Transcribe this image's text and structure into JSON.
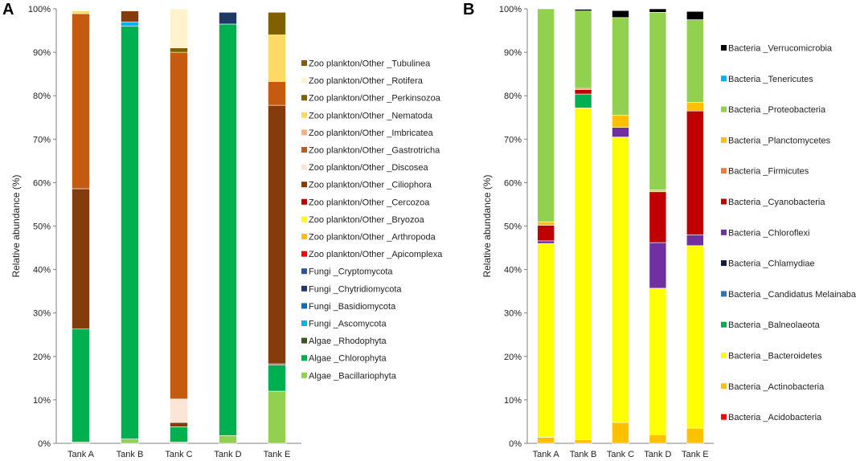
{
  "chart_data": [
    {
      "type": "bar",
      "stacked": true,
      "panel_label": "A",
      "title": "",
      "xlabel": "",
      "ylabel": "Relative abundance (%)",
      "ylim": [
        0,
        100
      ],
      "yticks": [
        "0%",
        "10%",
        "20%",
        "30%",
        "40%",
        "50%",
        "60%",
        "70%",
        "80%",
        "90%",
        "100%"
      ],
      "categories": [
        "Tank A",
        "Tank B",
        "Tank C",
        "Tank D",
        "Tank E"
      ],
      "series": [
        {
          "name": "Algae _Bacillariophyta",
          "color": "#92d050",
          "values": [
            0.3,
            1.0,
            0.3,
            1.8,
            12.0
          ]
        },
        {
          "name": "Algae _Chlorophyta",
          "color": "#00b050",
          "values": [
            26.0,
            95.0,
            3.5,
            94.7,
            6.0
          ]
        },
        {
          "name": "Algae _Rhodophyta",
          "color": "#375623",
          "values": [
            0.0,
            0.0,
            0.0,
            0.0,
            0.3
          ]
        },
        {
          "name": "Fungi _Ascomycota",
          "color": "#00b0f0",
          "values": [
            0.0,
            1.0,
            0.0,
            0.0,
            0.0
          ]
        },
        {
          "name": "Fungi _Basidiomycota",
          "color": "#0070c0",
          "values": [
            0.0,
            0.0,
            0.0,
            0.0,
            0.0
          ]
        },
        {
          "name": "Fungi _Chytridiomycota",
          "color": "#1f3864",
          "values": [
            0.0,
            0.0,
            0.0,
            2.7,
            0.0
          ]
        },
        {
          "name": "Fungi _Cryptomycota",
          "color": "#2f5597",
          "values": [
            0.0,
            0.0,
            0.0,
            0.0,
            0.0
          ]
        },
        {
          "name": "Zoo plankton/Other _Apicomplexa",
          "color": "#ff0000",
          "values": [
            0.0,
            0.0,
            0.0,
            0.0,
            0.0
          ]
        },
        {
          "name": "Zoo plankton/Other _Arthropoda",
          "color": "#ffc000",
          "values": [
            0.0,
            0.0,
            0.0,
            0.0,
            0.0
          ]
        },
        {
          "name": "Zoo plankton/Other _Bryozoa",
          "color": "#ffff00",
          "values": [
            0.0,
            0.0,
            0.0,
            0.0,
            0.0
          ]
        },
        {
          "name": "Zoo plankton/Other _Cercozoa",
          "color": "#c00000",
          "values": [
            0.0,
            0.0,
            0.0,
            0.0,
            0.0
          ]
        },
        {
          "name": "Zoo plankton/Other _Ciliophora",
          "color": "#843c0c",
          "values": [
            32.3,
            2.5,
            1.0,
            0.0,
            59.5
          ]
        },
        {
          "name": "Zoo plankton/Other _Discosea",
          "color": "#fbe5d6",
          "values": [
            0.0,
            0.0,
            5.4,
            0.0,
            0.0
          ]
        },
        {
          "name": "Zoo plankton/Other _Gastrotricha",
          "color": "#c55a11",
          "values": [
            40.3,
            0.0,
            79.8,
            0.0,
            5.5
          ]
        },
        {
          "name": "Zoo plankton/Other _Imbricatea",
          "color": "#f4b183",
          "values": [
            0.0,
            0.0,
            0.0,
            0.0,
            0.0
          ]
        },
        {
          "name": "Zoo plankton/Other _Nematoda",
          "color": "#ffd966",
          "values": [
            0.6,
            0.0,
            0.0,
            0.0,
            10.7
          ]
        },
        {
          "name": "Zoo plankton/Other _Perkinsozoa",
          "color": "#7f6000",
          "values": [
            0.0,
            0.0,
            1.0,
            0.0,
            0.0
          ]
        },
        {
          "name": "Zoo plankton/Other _Rotifera",
          "color": "#fff2cc",
          "values": [
            0.0,
            0.0,
            9.0,
            0.0,
            0.0
          ]
        },
        {
          "name": "Zoo plankton/Other _Tubulinea",
          "color": "#806000",
          "values": [
            0.0,
            0.0,
            0.0,
            0.0,
            5.2
          ]
        }
      ],
      "legend_order": [
        "Zoo plankton/Other _Tubulinea",
        "Zoo plankton/Other _Rotifera",
        "Zoo plankton/Other _Perkinsozoa",
        "Zoo plankton/Other _Nematoda",
        "Zoo plankton/Other _Imbricatea",
        "Zoo plankton/Other _Gastrotricha",
        "Zoo plankton/Other _Discosea",
        "Zoo plankton/Other _Ciliophora",
        "Zoo plankton/Other _Cercozoa",
        "Zoo plankton/Other _Bryozoa",
        "Zoo plankton/Other _Arthropoda",
        "Zoo plankton/Other _Apicomplexa",
        "Fungi _Cryptomycota",
        "Fungi _Chytridiomycota",
        "Fungi _Basidiomycota",
        "Fungi _Ascomycota",
        "Algae _Rhodophyta",
        "Algae _Chlorophyta",
        "Algae _Bacillariophyta"
      ],
      "legend_position": "right"
    },
    {
      "type": "bar",
      "stacked": true,
      "panel_label": "B",
      "title": "",
      "xlabel": "",
      "ylabel": "Relative abundance (%)",
      "ylim": [
        0,
        100
      ],
      "yticks": [
        "0%",
        "10%",
        "20%",
        "30%",
        "40%",
        "50%",
        "60%",
        "70%",
        "80%",
        "90%",
        "100%"
      ],
      "categories": [
        "Tank A",
        "Tank B",
        "Tank C",
        "Tank D",
        "Tank E"
      ],
      "series": [
        {
          "name": "Bacteria _Acidobacteria",
          "color": "#ff0000",
          "values": [
            0.0,
            0.0,
            0.0,
            0.0,
            0.0
          ]
        },
        {
          "name": "Bacteria _Actinobacteria",
          "color": "#ffc000",
          "values": [
            1.4,
            0.8,
            4.8,
            2.0,
            3.5
          ]
        },
        {
          "name": "Bacteria _Bacteroidetes",
          "color": "#ffff00",
          "values": [
            44.6,
            76.4,
            65.7,
            33.7,
            42.0
          ]
        },
        {
          "name": "Bacteria _Balneolaeota",
          "color": "#00b050",
          "values": [
            0.0,
            3.2,
            0.0,
            0.0,
            0.0
          ]
        },
        {
          "name": "Bacteria _Candidatus Melainabacteria",
          "color": "#2e75b6",
          "values": [
            0.0,
            0.0,
            0.0,
            0.0,
            0.0
          ]
        },
        {
          "name": "Bacteria _Chlamydiae",
          "color": "#0d1b3e",
          "values": [
            0.0,
            0.0,
            0.0,
            0.0,
            0.0
          ]
        },
        {
          "name": "Bacteria _Chloroflexi",
          "color": "#7030a0",
          "values": [
            0.6,
            0.0,
            2.2,
            10.5,
            2.5
          ]
        },
        {
          "name": "Bacteria _Cyanobacteria",
          "color": "#c00000",
          "values": [
            3.6,
            1.0,
            0.0,
            11.7,
            28.5
          ]
        },
        {
          "name": "Bacteria _Firmicutes",
          "color": "#ed7d31",
          "values": [
            0.0,
            0.3,
            0.0,
            0.0,
            0.0
          ]
        },
        {
          "name": "Bacteria _Planctomycetes",
          "color": "#ffc000",
          "values": [
            0.8,
            0.0,
            2.8,
            0.4,
            2.0
          ]
        },
        {
          "name": "Bacteria _Proteobacteria",
          "color": "#92d050",
          "values": [
            49.0,
            17.8,
            22.5,
            40.9,
            19.0
          ]
        },
        {
          "name": "Bacteria _Tenericutes",
          "color": "#00b0f0",
          "values": [
            0.0,
            0.0,
            0.0,
            0.0,
            0.0
          ]
        },
        {
          "name": "Bacteria _Verrucomicrobia",
          "color": "#000000",
          "values": [
            0.0,
            0.4,
            1.6,
            0.8,
            1.9
          ]
        }
      ],
      "legend_order": [
        "Bacteria _Verrucomicrobia",
        "Bacteria _Tenericutes",
        "Bacteria _Proteobacteria",
        "Bacteria _Planctomycetes",
        "Bacteria _Firmicutes",
        "Bacteria _Cyanobacteria",
        "Bacteria _Chloroflexi",
        "Bacteria _Chlamydiae",
        "Bacteria _Candidatus Melainabacteria",
        "Bacteria _Balneolaeota",
        "Bacteria _Bacteroidetes",
        "Bacteria _Actinobacteria",
        "Bacteria _Acidobacteria"
      ],
      "legend_position": "right"
    }
  ]
}
